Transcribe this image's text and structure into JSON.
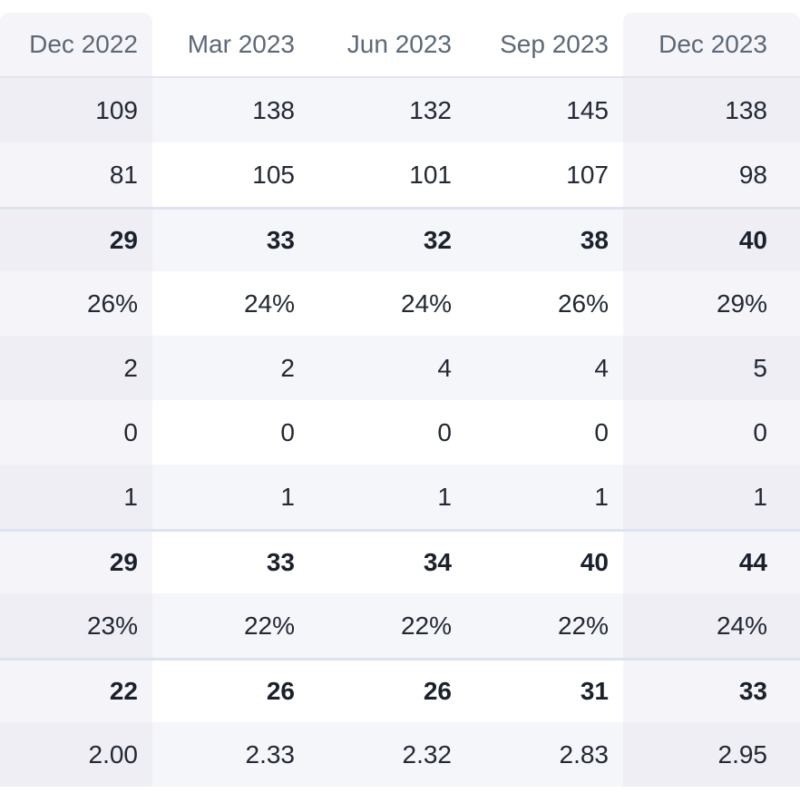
{
  "table": {
    "columns": [
      "Dec 2022",
      "Mar 2023",
      "Jun 2023",
      "Sep 2023",
      "Dec 2023"
    ],
    "rows": [
      {
        "style": "regular",
        "striped": true,
        "separator": false,
        "values": [
          "109",
          "138",
          "132",
          "145",
          "138"
        ]
      },
      {
        "style": "regular",
        "striped": false,
        "separator": false,
        "values": [
          "81",
          "105",
          "101",
          "107",
          "98"
        ]
      },
      {
        "style": "bold",
        "striped": true,
        "separator": true,
        "values": [
          "29",
          "33",
          "32",
          "38",
          "40"
        ]
      },
      {
        "style": "regular",
        "striped": false,
        "separator": false,
        "values": [
          "26%",
          "24%",
          "24%",
          "26%",
          "29%"
        ]
      },
      {
        "style": "regular",
        "striped": true,
        "separator": false,
        "values": [
          "2",
          "2",
          "4",
          "4",
          "5"
        ]
      },
      {
        "style": "regular",
        "striped": false,
        "separator": false,
        "values": [
          "0",
          "0",
          "0",
          "0",
          "0"
        ]
      },
      {
        "style": "regular",
        "striped": true,
        "separator": false,
        "values": [
          "1",
          "1",
          "1",
          "1",
          "1"
        ]
      },
      {
        "style": "bold",
        "striped": false,
        "separator": true,
        "values": [
          "29",
          "33",
          "34",
          "40",
          "44"
        ]
      },
      {
        "style": "regular",
        "striped": true,
        "separator": false,
        "values": [
          "23%",
          "22%",
          "22%",
          "22%",
          "24%"
        ]
      },
      {
        "style": "bold",
        "striped": false,
        "separator": true,
        "values": [
          "22",
          "26",
          "26",
          "31",
          "33"
        ]
      },
      {
        "style": "regular",
        "striped": true,
        "separator": false,
        "values": [
          "2.00",
          "2.33",
          "2.32",
          "2.83",
          "2.95"
        ]
      }
    ]
  },
  "colors": {
    "background": "#ffffff",
    "stripe_row": "#f5f6f9",
    "highlight_column": "#f5f5f9",
    "highlight_column_on_stripe": "#eeeef4",
    "separator_line": "#dde3ef",
    "header_border": "#e3e5ef",
    "header_text": "#5d6878",
    "cell_text": "#222834",
    "bold_cell_text": "#1b212c"
  }
}
